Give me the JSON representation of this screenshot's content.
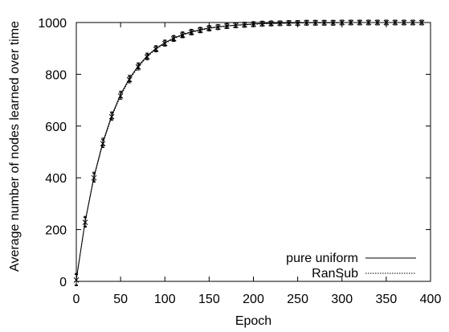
{
  "chart_data": {
    "type": "line",
    "title": "",
    "xlabel": "Epoch",
    "ylabel": "Average number of nodes learned over time",
    "xlim": [
      0,
      400
    ],
    "ylim": [
      0,
      1000
    ],
    "xticks": [
      0,
      50,
      100,
      150,
      200,
      250,
      300,
      350,
      400
    ],
    "yticks": [
      0,
      200,
      400,
      600,
      800,
      1000
    ],
    "grid": false,
    "legend_position": "bottom-right",
    "x": [
      0,
      10,
      20,
      30,
      40,
      50,
      60,
      70,
      80,
      90,
      100,
      110,
      120,
      130,
      140,
      150,
      160,
      170,
      180,
      190,
      200,
      210,
      220,
      230,
      240,
      250,
      260,
      270,
      280,
      290,
      300,
      310,
      320,
      330,
      340,
      350,
      360,
      370,
      380,
      390
    ],
    "series": [
      {
        "name": "pure uniform",
        "style": "solid",
        "values": [
          8,
          232,
          405,
          538,
          641,
          722,
          784,
          833,
          871,
          900,
          922,
          940,
          954,
          964,
          972,
          979,
          983,
          987,
          990,
          992,
          994,
          996,
          997,
          997,
          998,
          998,
          999,
          999,
          999,
          999,
          1000,
          1000,
          1000,
          1000,
          1000,
          1000,
          1000,
          1000,
          1000,
          1000
        ]
      },
      {
        "name": "RanSub",
        "style": "dotted",
        "values": [
          5,
          228,
          400,
          532,
          636,
          716,
          779,
          828,
          867,
          897,
          919,
          937,
          951,
          962,
          970,
          977,
          982,
          986,
          989,
          991,
          993,
          995,
          996,
          997,
          998,
          998,
          999,
          999,
          999,
          999,
          1000,
          1000,
          1000,
          1000,
          1000,
          1000,
          1000,
          1000,
          1000,
          1000
        ]
      }
    ]
  }
}
